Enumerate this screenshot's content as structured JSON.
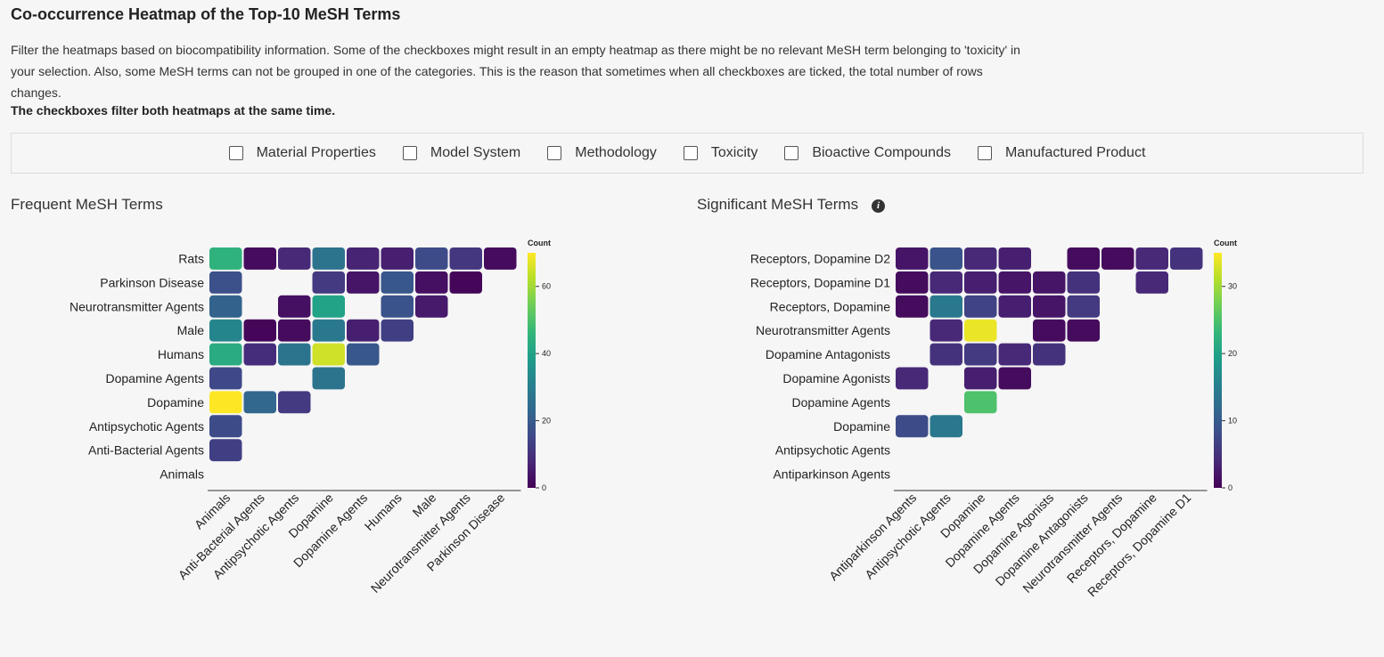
{
  "page": {
    "title": "Co-occurrence Heatmap of the Top-10 MeSH Terms",
    "intro": "Filter the heatmaps based on biocompatibility information. Some of the checkboxes might result in an empty heatmap as there might be no relevant MeSH term belonging to 'toxicity' in your selection. Also, some MeSH terms can not be grouped in one of the categories. This is the reason that sometimes when all checkboxes are ticked, the total number of rows changes.",
    "intro_bold": "The checkboxes filter both heatmaps at the same time."
  },
  "filters": [
    {
      "label": "Material Properties",
      "checked": false
    },
    {
      "label": "Model System",
      "checked": false
    },
    {
      "label": "Methodology",
      "checked": false
    },
    {
      "label": "Toxicity",
      "checked": false
    },
    {
      "label": "Bioactive Compounds",
      "checked": false
    },
    {
      "label": "Manufactured Product",
      "checked": false
    }
  ],
  "panels": {
    "frequent_title": "Frequent MeSH Terms",
    "significant_title": "Significant MeSH Terms",
    "info_icon": "info-icon"
  },
  "chart_data": [
    {
      "type": "heatmap",
      "title": "Frequent MeSH Terms",
      "legend_title": "Count",
      "vmin": 0,
      "vmax": 70,
      "colorbar_ticks": [
        0,
        20,
        40,
        60
      ],
      "colormap": "viridis",
      "rows": [
        "Rats",
        "Parkinson Disease",
        "Neurotransmitter Agents",
        "Male",
        "Humans",
        "Dopamine Agents",
        "Dopamine",
        "Antipsychotic Agents",
        "Anti-Bacterial Agents",
        "Animals"
      ],
      "columns": [
        "Animals",
        "Anti-Bacterial Agents",
        "Antipsychotic Agents",
        "Dopamine",
        "Dopamine Agents",
        "Humans",
        "Male",
        "Neurotransmitter Agents",
        "Parkinson Disease"
      ],
      "values": [
        [
          45,
          2,
          8,
          27,
          7,
          6,
          16,
          11,
          2
        ],
        [
          17,
          null,
          null,
          12,
          4,
          19,
          3,
          1,
          null
        ],
        [
          22,
          null,
          3,
          40,
          null,
          18,
          5,
          null,
          null
        ],
        [
          32,
          1,
          2,
          28,
          6,
          13,
          null,
          null,
          null
        ],
        [
          43,
          9,
          27,
          65,
          19,
          null,
          null,
          null,
          null
        ],
        [
          15,
          null,
          null,
          27,
          null,
          null,
          null,
          null,
          null
        ],
        [
          70,
          23,
          12,
          null,
          null,
          null,
          null,
          null,
          null
        ],
        [
          16,
          null,
          null,
          null,
          null,
          null,
          null,
          null,
          null
        ],
        [
          13,
          null,
          null,
          null,
          null,
          null,
          null,
          null,
          null
        ],
        [
          null,
          null,
          null,
          null,
          null,
          null,
          null,
          null,
          null
        ]
      ]
    },
    {
      "type": "heatmap",
      "title": "Significant MeSH Terms",
      "legend_title": "Count",
      "vmin": 0,
      "vmax": 35,
      "colorbar_ticks": [
        0,
        10,
        20,
        30
      ],
      "colormap": "viridis",
      "rows": [
        "Receptors, Dopamine D2",
        "Receptors, Dopamine D1",
        "Receptors, Dopamine",
        "Neurotransmitter Agents",
        "Dopamine Antagonists",
        "Dopamine Agonists",
        "Dopamine Agents",
        "Dopamine",
        "Antipsychotic Agents",
        "Antiparkinson Agents"
      ],
      "columns": [
        "Antiparkinson Agents",
        "Antipsychotic Agents",
        "Dopamine",
        "Dopamine Agents",
        "Dopamine Agonists",
        "Dopamine Antagonists",
        "Neurotransmitter Agents",
        "Receptors, Dopamine",
        "Receptors, Dopamine D1"
      ],
      "values": [
        [
          2,
          9,
          4,
          3,
          null,
          1,
          1,
          4,
          5
        ],
        [
          1,
          4,
          3,
          2,
          2,
          5,
          null,
          4,
          null
        ],
        [
          1,
          14,
          7,
          3,
          2,
          6,
          null,
          null,
          null
        ],
        [
          null,
          4,
          34,
          null,
          1,
          1,
          null,
          null,
          null
        ],
        [
          null,
          5,
          6,
          4,
          5,
          null,
          null,
          null,
          null
        ],
        [
          4,
          null,
          3,
          1,
          null,
          null,
          null,
          null,
          null
        ],
        [
          null,
          null,
          25,
          null,
          null,
          null,
          null,
          null,
          null
        ],
        [
          8,
          14,
          null,
          null,
          null,
          null,
          null,
          null,
          null
        ],
        [
          null,
          null,
          null,
          null,
          null,
          null,
          null,
          null,
          null
        ],
        [
          null,
          null,
          null,
          null,
          null,
          null,
          null,
          null,
          null
        ]
      ]
    }
  ]
}
